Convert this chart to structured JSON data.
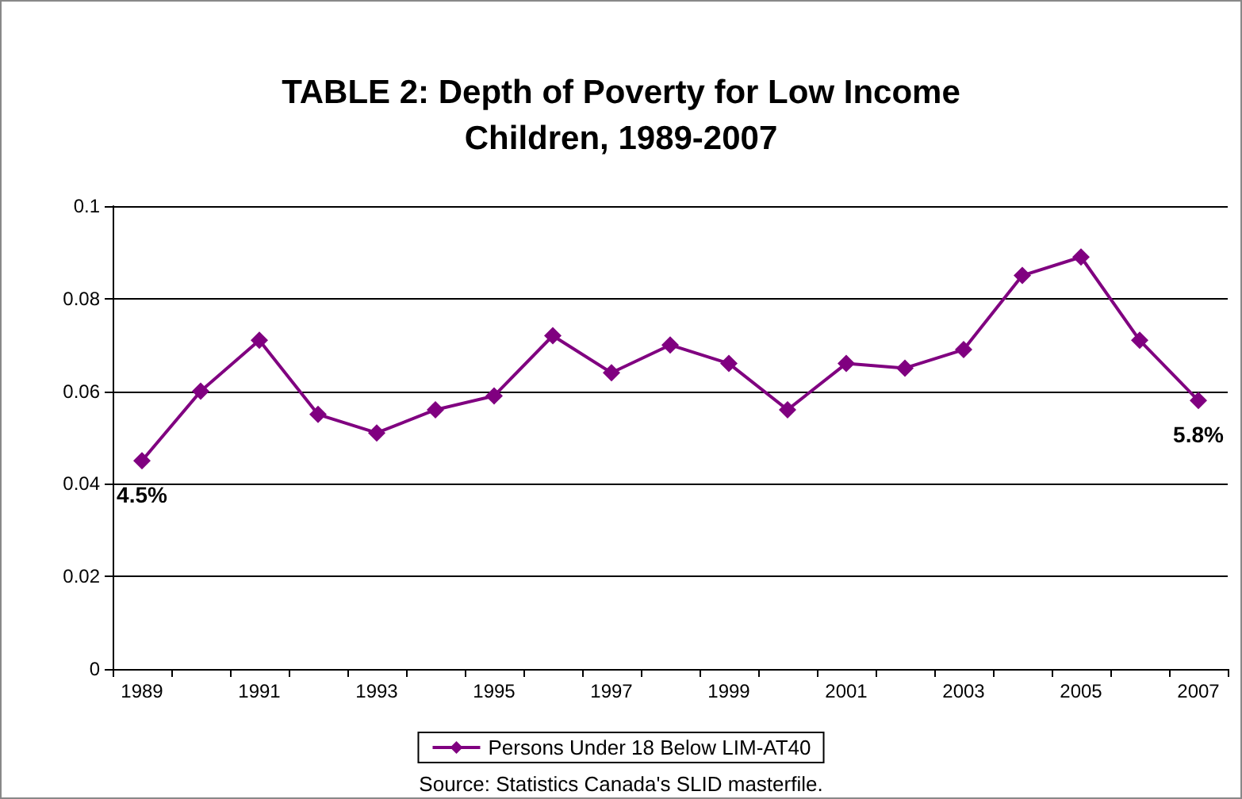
{
  "chart_data": {
    "type": "line",
    "title": "TABLE 2: Depth of Poverty for Low Income\nChildren, 1989-2007",
    "categories": [
      "1989",
      null,
      "1991",
      null,
      "1993",
      null,
      "1995",
      null,
      "1997",
      null,
      "1999",
      null,
      "2001",
      null,
      "2003",
      null,
      "2005",
      null,
      "2007"
    ],
    "series": [
      {
        "name": "Persons Under 18 Below LIM-AT40",
        "color": "#800080",
        "values": [
          0.045,
          0.06,
          0.071,
          0.055,
          0.051,
          0.056,
          0.059,
          0.072,
          0.064,
          0.07,
          0.066,
          0.056,
          0.066,
          0.065,
          0.069,
          0.085,
          0.089,
          0.071,
          0.058
        ]
      }
    ],
    "ylim": [
      0,
      0.1
    ],
    "yticks": [
      0,
      0.02,
      0.04,
      0.06,
      0.08,
      0.1
    ],
    "grid": "y",
    "legend": "bottom",
    "marker": "diamond",
    "line_style": "solid",
    "annotations": [
      {
        "text": "4.5%",
        "x": "1989",
        "y": 0.045
      },
      {
        "text": "5.8%",
        "x": "2007",
        "y": 0.058
      },
      "Source: Statistics Canada's SLID masterfile."
    ]
  }
}
